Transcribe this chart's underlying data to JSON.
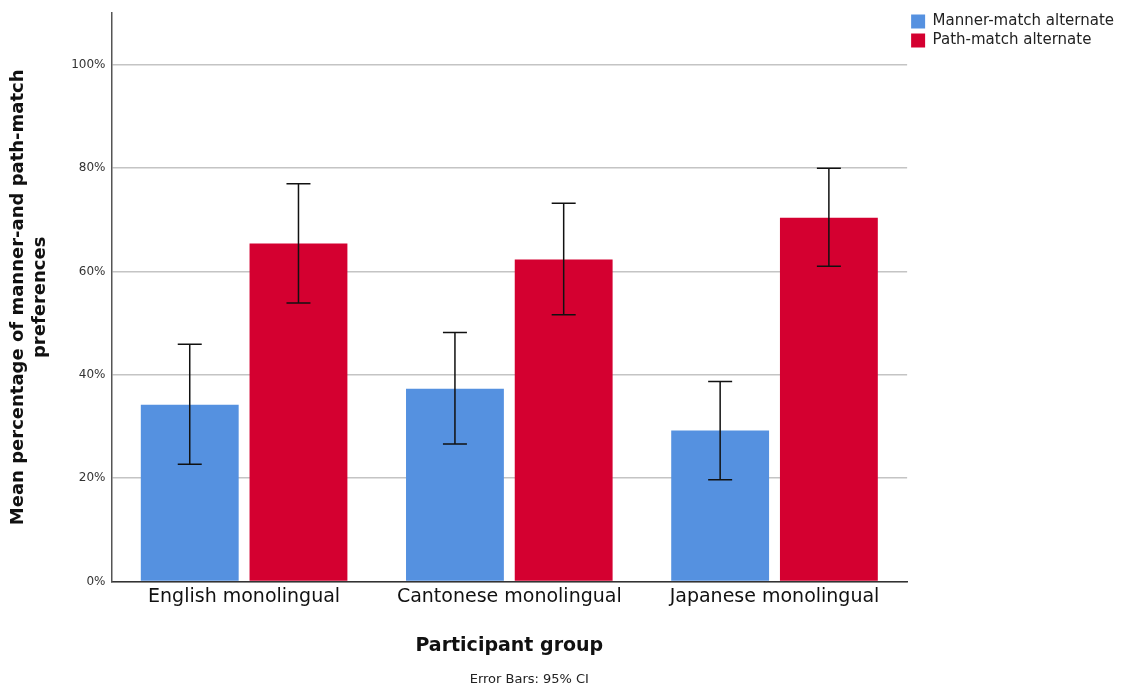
{
  "chart_data": {
    "type": "bar",
    "xlabel": "Participant group",
    "ylabel": "Mean percentage of manner-and path-match preferences",
    "categories": [
      "English monolingual",
      "Cantonese monolingual",
      "Japanese monolingual"
    ],
    "series": [
      {
        "name": "Manner-match alternate",
        "color": "#5591e0",
        "values": [
          34.2,
          37.3,
          29.2
        ],
        "errors": [
          [
            22.7,
            45.9
          ],
          [
            26.6,
            48.2
          ],
          [
            19.7,
            38.7
          ]
        ]
      },
      {
        "name": "Path-match alternate",
        "color": "#d40030",
        "values": [
          65.4,
          62.3,
          70.4
        ],
        "errors": [
          [
            53.9,
            77.0
          ],
          [
            51.6,
            73.2
          ],
          [
            61.0,
            80.0
          ]
        ]
      }
    ],
    "ylim": [
      0,
      110
    ],
    "yticks": [
      {
        "value": 0,
        "label": "0%"
      },
      {
        "value": 20,
        "label": "20%"
      },
      {
        "value": 40,
        "label": "40%"
      },
      {
        "value": 60,
        "label": "60%"
      },
      {
        "value": 80,
        "label": "80%"
      },
      {
        "value": 100,
        "label": "100%"
      }
    ],
    "grid": "y",
    "legend": "top right",
    "annotations": [
      "Error Bars: 95% CI"
    ]
  }
}
